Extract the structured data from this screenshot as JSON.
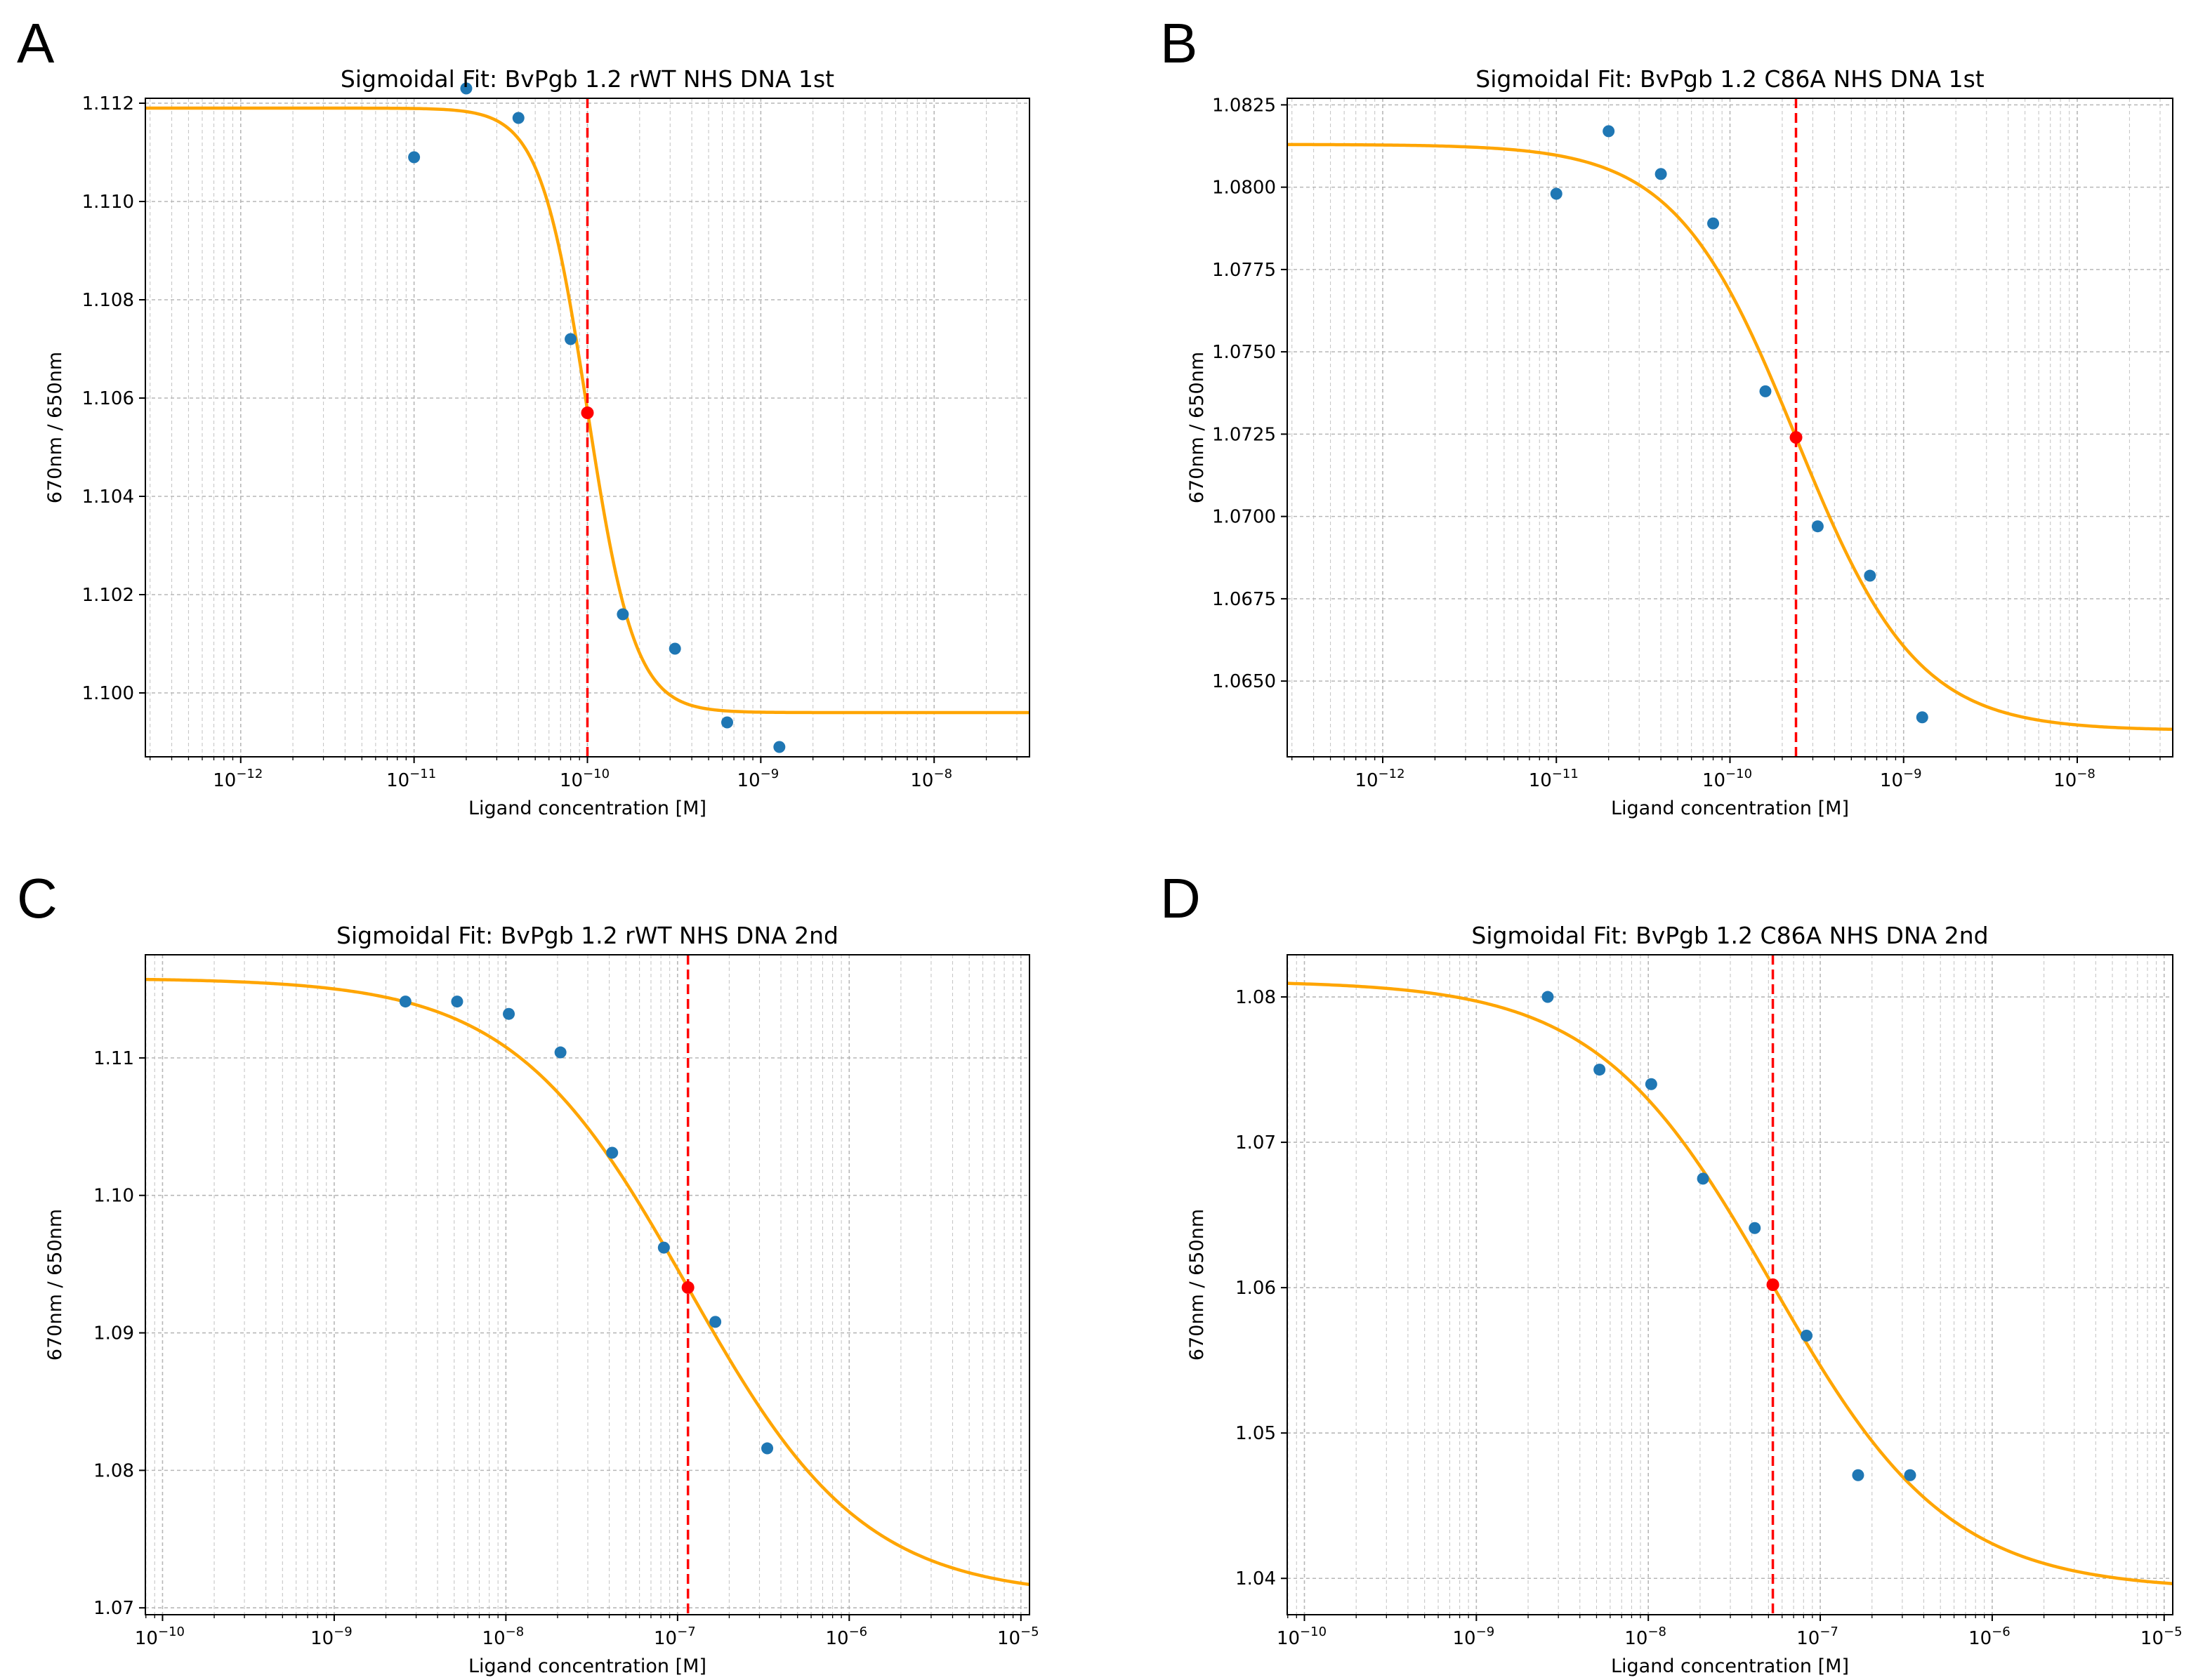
{
  "panel_letters": [
    "A",
    "B",
    "C",
    "D"
  ],
  "chart_data": [
    {
      "type": "scatter",
      "letter": "A",
      "title": "Sigmoidal Fit: BvPgb 1.2 rWT NHS DNA 1st",
      "xlabel": "Ligand concentration [M]",
      "ylabel": "670nm / 650nm",
      "xscale": "log",
      "xlim_log10": [
        -12.55,
        -7.45
      ],
      "ylim": [
        1.0987,
        1.1121
      ],
      "x_tick_exponents": [
        -12,
        -11,
        -10,
        -9,
        -8
      ],
      "y_ticks": [
        1.1,
        1.102,
        1.104,
        1.106,
        1.108,
        1.11,
        1.112
      ],
      "y_tick_labels": [
        "1.100",
        "1.102",
        "1.104",
        "1.106",
        "1.108",
        "1.110",
        "1.112"
      ],
      "points": [
        {
          "x": 1e-11,
          "y": 1.1109
        },
        {
          "x": 2e-11,
          "y": 1.1123
        },
        {
          "x": 4e-11,
          "y": 1.1117
        },
        {
          "x": 8e-11,
          "y": 1.1072
        },
        {
          "x": 1.6e-10,
          "y": 1.1016
        },
        {
          "x": 3.2e-10,
          "y": 1.1009
        },
        {
          "x": 6.4e-10,
          "y": 1.0994
        },
        {
          "x": 1.28e-09,
          "y": 1.0989
        }
      ],
      "fit": {
        "top": 1.1119,
        "bottom": 1.0996,
        "ec50": 1e-10,
        "hill": 3.2
      },
      "ec50_point": {
        "x": 1e-10,
        "y": 1.1057
      },
      "series": [
        {
          "name": "data",
          "color": "#1f77b4"
        },
        {
          "name": "sigmoidal fit",
          "color": "#ffa500"
        },
        {
          "name": "EC50",
          "color": "#ff0000"
        }
      ],
      "grid": true
    },
    {
      "type": "scatter",
      "letter": "B",
      "title": "Sigmoidal Fit: BvPgb 1.2 C86A NHS DNA 1st",
      "xlabel": "Ligand concentration [M]",
      "ylabel": "670nm / 650nm",
      "xscale": "log",
      "xlim_log10": [
        -12.55,
        -7.45
      ],
      "ylim": [
        1.0627,
        1.0827
      ],
      "x_tick_exponents": [
        -12,
        -11,
        -10,
        -9,
        -8
      ],
      "y_ticks": [
        1.065,
        1.0675,
        1.07,
        1.0725,
        1.075,
        1.0775,
        1.08,
        1.0825
      ],
      "y_tick_labels": [
        "1.0650",
        "1.0675",
        "1.0700",
        "1.0725",
        "1.0750",
        "1.0775",
        "1.0800",
        "1.0825"
      ],
      "points": [
        {
          "x": 1e-11,
          "y": 1.0798
        },
        {
          "x": 2e-11,
          "y": 1.0817
        },
        {
          "x": 4e-11,
          "y": 1.0804
        },
        {
          "x": 8e-11,
          "y": 1.0789
        },
        {
          "x": 1.6e-10,
          "y": 1.0738
        },
        {
          "x": 3.2e-10,
          "y": 1.0697
        },
        {
          "x": 6.4e-10,
          "y": 1.0682
        },
        {
          "x": 1.28e-09,
          "y": 1.0639
        }
      ],
      "fit": {
        "top": 1.0813,
        "bottom": 1.0635,
        "ec50": 2.4e-10,
        "hill": 1.25
      },
      "ec50_point": {
        "x": 2.4e-10,
        "y": 1.0724
      },
      "series": [
        {
          "name": "data",
          "color": "#1f77b4"
        },
        {
          "name": "sigmoidal fit",
          "color": "#ffa500"
        },
        {
          "name": "EC50",
          "color": "#ff0000"
        }
      ],
      "grid": true
    },
    {
      "type": "scatter",
      "letter": "C",
      "title": "Sigmoidal Fit: BvPgb 1.2 rWT NHS DNA 2nd",
      "xlabel": "Ligand concentration [M]",
      "ylabel": "670nm / 650nm",
      "xscale": "log",
      "xlim_log10": [
        -10.1,
        -4.95
      ],
      "ylim": [
        1.0695,
        1.1175
      ],
      "x_tick_exponents": [
        -10,
        -9,
        -8,
        -7,
        -6,
        -5
      ],
      "y_ticks": [
        1.07,
        1.08,
        1.09,
        1.1,
        1.11
      ],
      "y_tick_labels": [
        "1.07",
        "1.08",
        "1.09",
        "1.10",
        "1.11"
      ],
      "points": [
        {
          "x": 2.6e-09,
          "y": 1.1141
        },
        {
          "x": 5.2e-09,
          "y": 1.1141
        },
        {
          "x": 1.04e-08,
          "y": 1.1132
        },
        {
          "x": 2.08e-08,
          "y": 1.1104
        },
        {
          "x": 4.16e-08,
          "y": 1.1031
        },
        {
          "x": 8.32e-08,
          "y": 1.0962
        },
        {
          "x": 1.66e-07,
          "y": 1.0908
        },
        {
          "x": 3.33e-07,
          "y": 1.0816
        }
      ],
      "fit": {
        "top": 1.1158,
        "bottom": 1.0708,
        "ec50": 1.15e-07,
        "hill": 0.85
      },
      "ec50_point": {
        "x": 1.15e-07,
        "y": 1.0933
      },
      "series": [
        {
          "name": "data",
          "color": "#1f77b4"
        },
        {
          "name": "sigmoidal fit",
          "color": "#ffa500"
        },
        {
          "name": "EC50",
          "color": "#ff0000"
        }
      ],
      "grid": true
    },
    {
      "type": "scatter",
      "letter": "D",
      "title": "Sigmoidal Fit: BvPgb 1.2 C86A NHS DNA 2nd",
      "xlabel": "Ligand concentration [M]",
      "ylabel": "670nm / 650nm",
      "xscale": "log",
      "xlim_log10": [
        -10.1,
        -4.95
      ],
      "ylim": [
        1.0375,
        1.0829
      ],
      "x_tick_exponents": [
        -10,
        -9,
        -8,
        -7,
        -6,
        -5
      ],
      "y_ticks": [
        1.04,
        1.05,
        1.06,
        1.07,
        1.08
      ],
      "y_tick_labels": [
        "1.04",
        "1.05",
        "1.06",
        "1.07",
        "1.08"
      ],
      "points": [
        {
          "x": 2.6e-09,
          "y": 1.08
        },
        {
          "x": 5.2e-09,
          "y": 1.075
        },
        {
          "x": 1.04e-08,
          "y": 1.074
        },
        {
          "x": 2.08e-08,
          "y": 1.0675
        },
        {
          "x": 4.16e-08,
          "y": 1.0641
        },
        {
          "x": 8.32e-08,
          "y": 1.0567
        },
        {
          "x": 1.66e-07,
          "y": 1.0471
        },
        {
          "x": 3.33e-07,
          "y": 1.0471
        }
      ],
      "fit": {
        "top": 1.0811,
        "bottom": 1.0392,
        "ec50": 5.3e-08,
        "hill": 0.85
      },
      "ec50_point": {
        "x": 5.3e-08,
        "y": 1.0602
      },
      "series": [
        {
          "name": "data",
          "color": "#1f77b4"
        },
        {
          "name": "sigmoidal fit",
          "color": "#ffa500"
        },
        {
          "name": "EC50",
          "color": "#ff0000"
        }
      ],
      "grid": true
    }
  ]
}
